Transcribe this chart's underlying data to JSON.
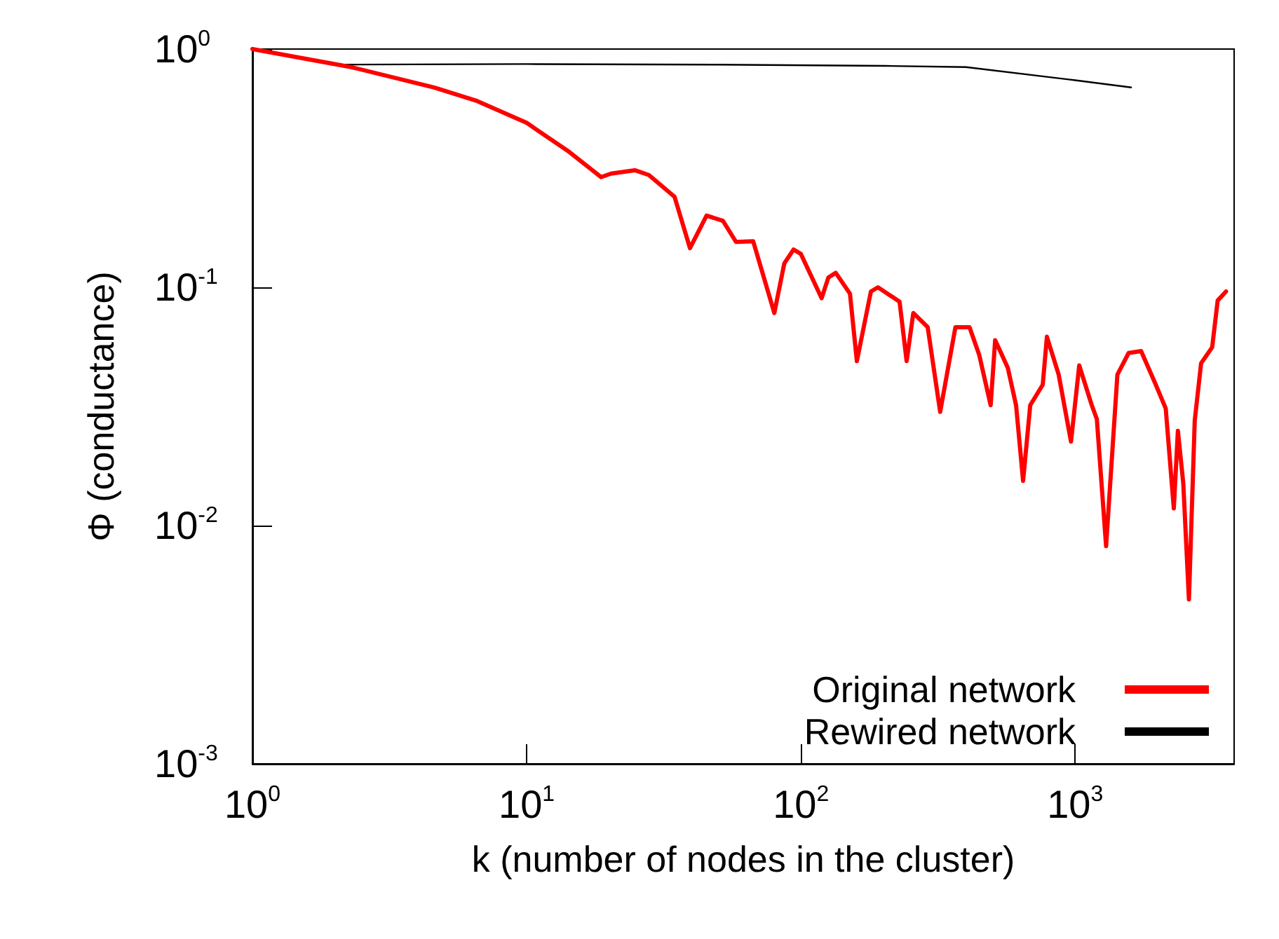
{
  "chart_data": {
    "type": "line",
    "xlabel": "k (number of nodes in the cluster)",
    "ylabel": "Φ (conductance)",
    "log": "xy",
    "xlim": [
      1,
      3800
    ],
    "ylim": [
      0.001,
      1
    ],
    "xticks": [
      {
        "value": 1,
        "label": "10$^{0}$"
      },
      {
        "value": 10,
        "label": "10$^{1}$"
      },
      {
        "value": 100,
        "label": "10$^{2}$"
      },
      {
        "value": 1000,
        "label": "10$^{3}$"
      }
    ],
    "yticks": [
      {
        "value": 0.001,
        "label": "10$^{-3}$"
      },
      {
        "value": 0.01,
        "label": "10$^{-2}$"
      },
      {
        "value": 0.1,
        "label": "10$^{-1}$"
      },
      {
        "value": 1,
        "label": "10$^{0}$"
      }
    ],
    "legend": "bottom right",
    "grid": false,
    "marker": "none",
    "line_style": "solid",
    "series": [
      {
        "name": "Original network",
        "color": "#ff0000",
        "x": [
          1,
          2.29,
          4.6,
          6.6,
          10,
          14.3,
          18.7,
          20.3,
          24.8,
          27.9,
          34.6,
          39.4,
          45.3,
          52,
          58,
          67,
          80,
          87,
          94,
          100,
          119,
          126,
          134,
          151,
          160,
          180,
          191,
          229,
          243,
          257,
          290,
          322,
          366,
          412,
          447,
          492,
          511,
          568,
          609,
          646,
          686,
          762,
          789,
          871,
          966,
          1035,
          1150,
          1200,
          1297,
          1426,
          1567,
          1740,
          1950,
          2140,
          2290,
          2370,
          2480,
          2600,
          2730,
          2880,
          3160,
          3310,
          3550
        ],
        "values": [
          1,
          0.84,
          0.69,
          0.605,
          0.49,
          0.37,
          0.29,
          0.3,
          0.31,
          0.296,
          0.24,
          0.146,
          0.2,
          0.19,
          0.155,
          0.156,
          0.078,
          0.126,
          0.144,
          0.138,
          0.09,
          0.11,
          0.115,
          0.094,
          0.049,
          0.096,
          0.1,
          0.087,
          0.049,
          0.078,
          0.068,
          0.03,
          0.068,
          0.068,
          0.052,
          0.032,
          0.06,
          0.046,
          0.032,
          0.0154,
          0.032,
          0.039,
          0.062,
          0.043,
          0.0225,
          0.047,
          0.032,
          0.028,
          0.0082,
          0.043,
          0.053,
          0.054,
          0.04,
          0.031,
          0.0118,
          0.025,
          0.015,
          0.0049,
          0.0276,
          0.048,
          0.056,
          0.088,
          0.096
        ]
      },
      {
        "name": "Rewired network",
        "color": "#000000",
        "x": [
          1,
          1.98,
          10,
          50,
          204,
          400,
          1000,
          1600
        ],
        "values": [
          1,
          0.86,
          0.865,
          0.86,
          0.85,
          0.84,
          0.74,
          0.69
        ]
      }
    ]
  }
}
